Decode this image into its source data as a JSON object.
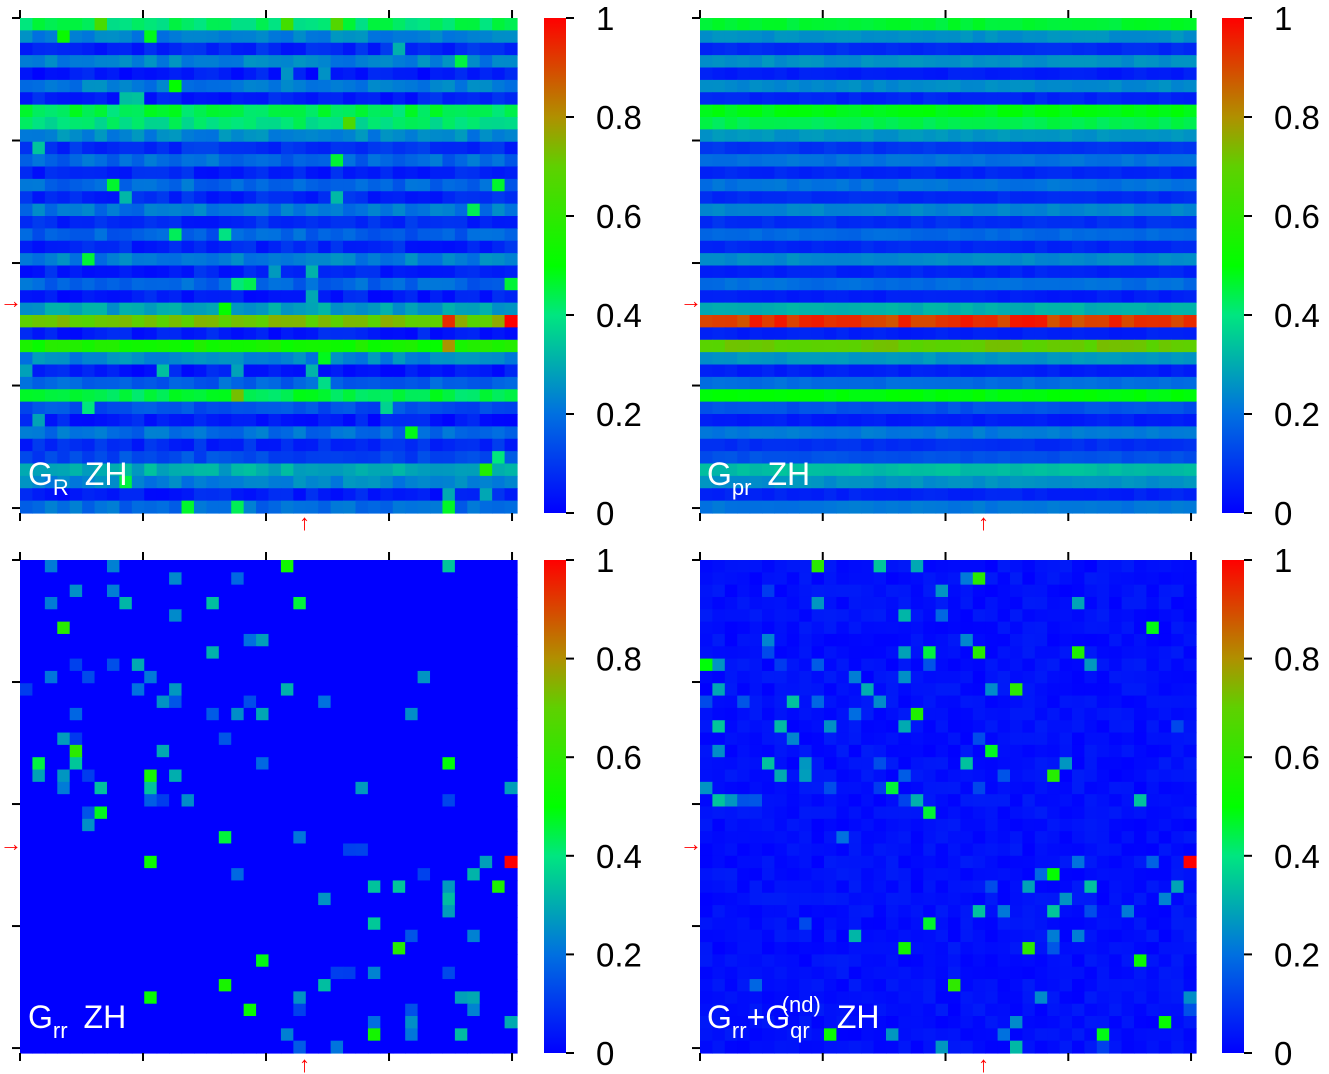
{
  "chart_data": [
    {
      "type": "heatmap",
      "label": {
        "main": "G",
        "sub": "R",
        "sup": "",
        "plus": "",
        "main2": "",
        "sub2": "",
        "sys": "ZH"
      },
      "mode": "rows",
      "colorbar": {
        "ticks": [
          "0",
          "0.2",
          "0.4",
          "0.6",
          "0.8",
          "1"
        ],
        "range": [
          0,
          1
        ]
      },
      "markers": {
        "row_arrow": "→",
        "col_arrow": "↑"
      }
    },
    {
      "type": "heatmap",
      "label": {
        "main": "G",
        "sub": "pr",
        "sup": "",
        "plus": "",
        "main2": "",
        "sub2": "",
        "sys": "ZH"
      },
      "mode": "rows-flat",
      "colorbar": {
        "ticks": [
          "0",
          "0.2",
          "0.4",
          "0.6",
          "0.8",
          "1"
        ],
        "range": [
          0,
          1
        ]
      },
      "markers": {
        "row_arrow": "→",
        "col_arrow": "↑"
      }
    },
    {
      "type": "heatmap",
      "label": {
        "main": "G",
        "sub": "rr",
        "sup": "",
        "plus": "",
        "main2": "",
        "sub2": "",
        "sys": "ZH"
      },
      "mode": "sparse",
      "colorbar": {
        "ticks": [
          "0",
          "0.2",
          "0.4",
          "0.6",
          "0.8",
          "1"
        ],
        "range": [
          0,
          1
        ]
      },
      "markers": {
        "row_arrow": "→",
        "col_arrow": "↑"
      }
    },
    {
      "type": "heatmap",
      "label": {
        "main": "G",
        "sub": "rr",
        "sup": "(nd)",
        "plus": "+",
        "main2": "G",
        "sub2": "qr",
        "sys": "ZH"
      },
      "mode": "sparse-nd",
      "colorbar": {
        "ticks": [
          "0",
          "0.2",
          "0.4",
          "0.6",
          "0.8",
          "1"
        ],
        "range": [
          0,
          1
        ]
      },
      "markers": {
        "row_arrow": "→",
        "col_arrow": "↑"
      }
    }
  ],
  "grid": {
    "rows": 40,
    "cols": 40,
    "marked_index": 24,
    "peak_value": 1
  },
  "colors": {
    "low": "#0000ff",
    "mid": "#00ff00",
    "high": "#ff0000",
    "arrow": "#ff0000",
    "label": "#ffffff"
  }
}
